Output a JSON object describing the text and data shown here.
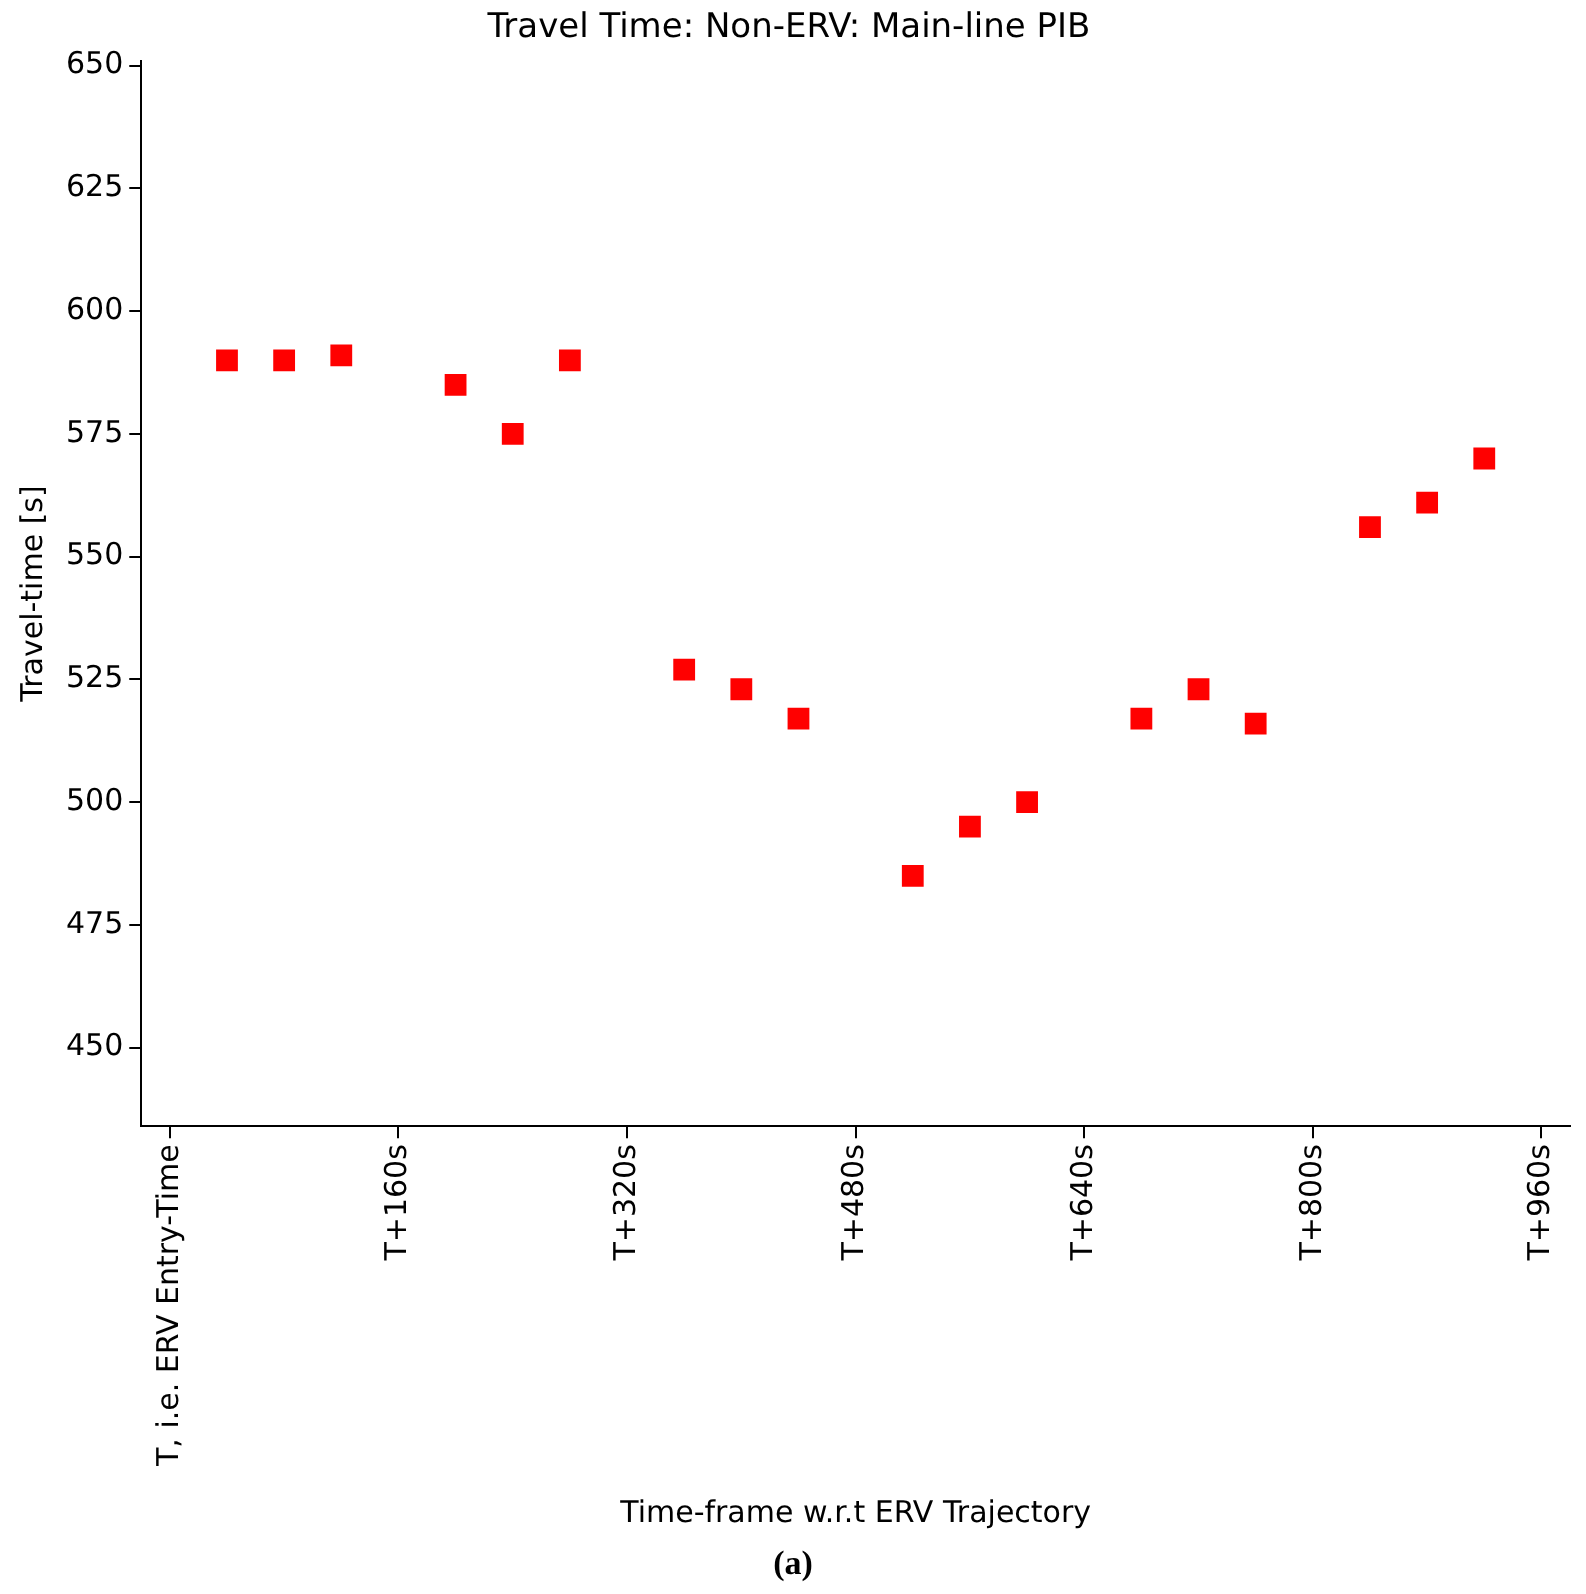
{
  "chart_data": {
    "type": "scatter",
    "title": "Travel Time: Non-ERV: Main-line PIB",
    "xlabel": "Time-frame w.r.t ERV Trajectory",
    "ylabel": "Travel-time [s]",
    "categories": [
      "T, i.e. ERV Entry-Time",
      null,
      null,
      null,
      "T+160s",
      null,
      null,
      null,
      "T+320s",
      null,
      null,
      null,
      "T+480s",
      null,
      null,
      null,
      "T+640s",
      null,
      null,
      null,
      "T+800s",
      null,
      null,
      null,
      "T+960s"
    ],
    "values": [
      null,
      590,
      590,
      591,
      null,
      585,
      575,
      590,
      null,
      527,
      523,
      517,
      null,
      485,
      495,
      500,
      null,
      517,
      523,
      516,
      null,
      556,
      561,
      570,
      null
    ],
    "color": "#ff0000",
    "marker": "square",
    "grid": false,
    "legend": false,
    "ylim": [
      434,
      651
    ],
    "yticks": [
      450,
      475,
      500,
      525,
      550,
      575,
      600,
      625,
      650
    ],
    "annotations": [
      "(a)"
    ]
  }
}
